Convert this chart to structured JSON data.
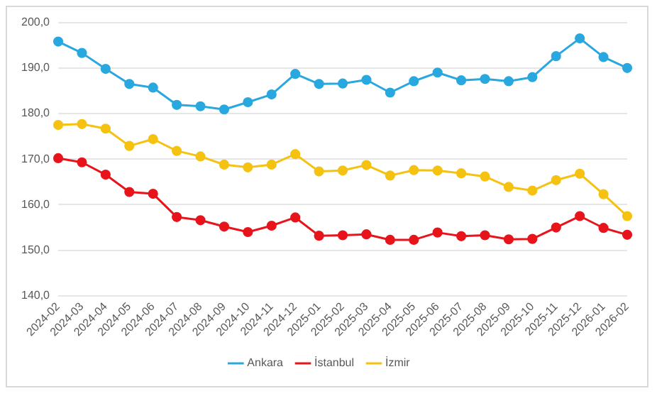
{
  "chart_data": {
    "type": "line",
    "categories": [
      "2024-02",
      "2024-03",
      "2024-04",
      "2024-05",
      "2024-06",
      "2024-07",
      "2024-08",
      "2024-09",
      "2024-10",
      "2024-11",
      "2024-12",
      "2025-01",
      "2025-02",
      "2025-03",
      "2025-04",
      "2025-05",
      "2025-06",
      "2025-07",
      "2025-08",
      "2025-09",
      "2025-10",
      "2025-11",
      "2025-12",
      "2026-01",
      "2026-02"
    ],
    "series": [
      {
        "name": "Ankara",
        "color": "#29a8e0",
        "values": [
          195.8,
          193.3,
          189.8,
          186.5,
          185.7,
          181.9,
          181.6,
          180.9,
          182.5,
          184.2,
          188.7,
          186.5,
          186.6,
          187.4,
          184.6,
          187.1,
          189.0,
          187.3,
          187.6,
          187.1,
          188.0,
          192.6,
          196.5,
          192.4,
          190.0
        ]
      },
      {
        "name": "İstanbul",
        "color": "#e8141b",
        "values": [
          170.2,
          169.3,
          166.6,
          162.8,
          162.4,
          157.3,
          156.6,
          155.2,
          154.0,
          155.4,
          157.2,
          153.2,
          153.3,
          153.5,
          152.3,
          152.3,
          153.9,
          153.1,
          153.3,
          152.4,
          152.5,
          155.0,
          157.5,
          154.9,
          153.4
        ]
      },
      {
        "name": "İzmir",
        "color": "#f5c211",
        "values": [
          177.5,
          177.7,
          176.7,
          172.9,
          174.4,
          171.8,
          170.6,
          168.8,
          168.2,
          168.8,
          171.1,
          167.3,
          167.5,
          168.7,
          166.4,
          167.6,
          167.5,
          166.9,
          166.2,
          163.9,
          163.1,
          165.4,
          166.8,
          162.3,
          157.5
        ]
      }
    ],
    "ylim": [
      140,
      200
    ],
    "yticks": [
      {
        "value": 140,
        "label": "140,0"
      },
      {
        "value": 150,
        "label": "150,0"
      },
      {
        "value": 160,
        "label": "160,0"
      },
      {
        "value": 170,
        "label": "170,0"
      },
      {
        "value": 180,
        "label": "180,0"
      },
      {
        "value": 190,
        "label": "190,0"
      },
      {
        "value": 200,
        "label": "200,0"
      }
    ],
    "grid": "y",
    "legend": "bottom",
    "marker": "circle",
    "line_style": "solid"
  }
}
